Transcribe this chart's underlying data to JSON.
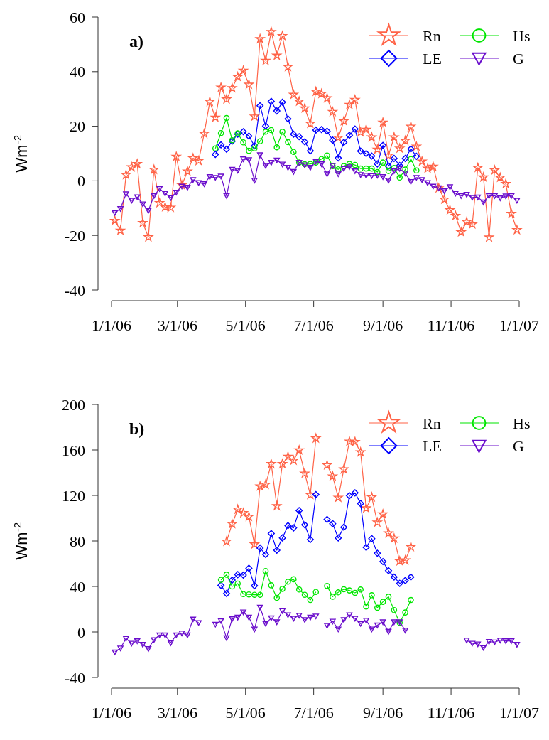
{
  "chart_data": [
    {
      "type": "line",
      "title": "a)",
      "ylabel": "Wm$^{-2}$",
      "legend": "top right",
      "ylim": [
        -40,
        60
      ],
      "yticks": [
        -40,
        -20,
        0,
        20,
        40,
        60
      ],
      "xlim": [
        "2006-01-01",
        "2007-01-01"
      ],
      "xticks": [
        {
          "value": "2006-01-01",
          "label": "1/1/06"
        },
        {
          "value": "2006-03-01",
          "label": "3/1/06"
        },
        {
          "value": "2006-05-01",
          "label": "5/1/06"
        },
        {
          "value": "2006-07-01",
          "label": "7/1/06"
        },
        {
          "value": "2006-09-01",
          "label": "9/1/06"
        },
        {
          "value": "2006-11-01",
          "label": "11/1/06"
        },
        {
          "value": "2007-01-01",
          "label": "1/1/07"
        }
      ],
      "x": [
        "2006-01-04",
        "2006-01-09",
        "2006-01-14",
        "2006-01-19",
        "2006-01-24",
        "2006-01-29",
        "2006-02-03",
        "2006-02-08",
        "2006-02-13",
        "2006-02-18",
        "2006-02-23",
        "2006-02-28",
        "2006-03-05",
        "2006-03-10",
        "2006-03-15",
        "2006-03-20",
        "2006-03-25",
        "2006-03-30",
        "2006-04-04",
        "2006-04-09",
        "2006-04-14",
        "2006-04-19",
        "2006-04-24",
        "2006-04-29",
        "2006-05-04",
        "2006-05-09",
        "2006-05-14",
        "2006-05-19",
        "2006-05-24",
        "2006-05-29",
        "2006-06-03",
        "2006-06-08",
        "2006-06-13",
        "2006-06-18",
        "2006-06-23",
        "2006-06-28",
        "2006-07-03",
        "2006-07-08",
        "2006-07-13",
        "2006-07-18",
        "2006-07-23",
        "2006-07-28",
        "2006-08-02",
        "2006-08-07",
        "2006-08-12",
        "2006-08-17",
        "2006-08-22",
        "2006-08-27",
        "2006-09-01",
        "2006-09-06",
        "2006-09-11",
        "2006-09-16",
        "2006-09-21",
        "2006-09-26",
        "2006-10-01",
        "2006-10-06",
        "2006-10-11",
        "2006-10-16",
        "2006-10-21",
        "2006-10-26",
        "2006-10-31",
        "2006-11-05",
        "2006-11-10",
        "2006-11-15",
        "2006-11-20",
        "2006-11-25",
        "2006-11-30",
        "2006-12-05",
        "2006-12-10",
        "2006-12-15",
        "2006-12-20",
        "2006-12-25",
        "2006-12-30"
      ],
      "series": [
        {
          "name": "Rn",
          "color": "#ff6347",
          "marker": "star",
          "values": [
            -14.6,
            -18.2,
            2.2,
            5,
            6.2,
            -15.4,
            -20.6,
            4.1,
            -8.1,
            -9.6,
            -9.8,
            8.9,
            -1.6,
            3.5,
            8.3,
            7.3,
            17.3,
            29,
            23.2,
            34.2,
            29.9,
            34,
            38.1,
            40.4,
            35.3,
            23.6,
            52,
            44,
            54.6,
            45.9,
            53.1,
            41.8,
            31.6,
            29.1,
            26.6,
            21,
            32.7,
            31.9,
            30.3,
            25.3,
            15.8,
            21.9,
            27.9,
            29.7,
            17.8,
            18.8,
            16,
            11.5,
            21.4,
            9.3,
            16,
            11.9,
            14.7,
            19.9,
            12.6,
            7.1,
            4.5,
            5.2,
            -2.7,
            -6.8,
            -10.7,
            -12.8,
            -18.8,
            -15,
            -15.9,
            4.8,
            1.3,
            -20.7,
            3.9,
            1.2,
            -1.1,
            -12,
            -18
          ]
        },
        {
          "name": "LE",
          "color": "#0000ff",
          "marker": "diamond",
          "values": [
            null,
            null,
            null,
            null,
            null,
            null,
            null,
            null,
            null,
            null,
            null,
            null,
            null,
            null,
            null,
            null,
            null,
            null,
            9.7,
            13.2,
            11.6,
            14.5,
            17.1,
            18,
            16.4,
            12.8,
            27.5,
            20.1,
            29.1,
            25.6,
            28.8,
            22.7,
            17.1,
            16.2,
            14.3,
            11,
            18.6,
            18.8,
            18.2,
            14.9,
            8.4,
            14.1,
            16.7,
            19,
            10.9,
            10,
            9.1,
            6.2,
            13,
            5.4,
            8.2,
            5.6,
            8.2,
            11.7,
            9,
            null,
            null,
            null,
            null,
            null,
            null,
            null,
            null,
            null,
            null,
            null,
            null,
            null,
            null,
            null,
            null,
            null,
            null
          ]
        },
        {
          "name": "Hs",
          "color": "#00e600",
          "marker": "circle",
          "values": [
            null,
            null,
            null,
            null,
            null,
            null,
            null,
            null,
            null,
            null,
            null,
            null,
            null,
            null,
            null,
            null,
            null,
            null,
            11.9,
            17.5,
            23,
            14.9,
            17.4,
            14.1,
            11,
            11.9,
            14.5,
            18,
            18.6,
            12.3,
            18,
            14.2,
            10.6,
            6.7,
            6.1,
            6.2,
            6.7,
            8,
            9.3,
            5.4,
            4.2,
            5.4,
            6.2,
            5.8,
            4.5,
            4.5,
            4.5,
            3.2,
            6.7,
            3.6,
            4.7,
            1.2,
            4.1,
            8,
            3.8,
            null,
            null,
            null,
            null,
            null,
            null,
            null,
            null,
            null,
            null,
            null,
            null,
            null,
            null,
            null,
            null,
            null,
            null
          ]
        },
        {
          "name": "G",
          "color": "#6a0dcc",
          "marker": "triangle",
          "values": [
            -11.7,
            -10.2,
            -4.8,
            -7.2,
            -5.9,
            -8.5,
            -10.9,
            -5.5,
            -2.9,
            -4.6,
            -6.2,
            -4.2,
            -2,
            -2.4,
            0.4,
            -0.7,
            -1.1,
            1.5,
            1.2,
            1.7,
            -5.5,
            4.2,
            3.8,
            8,
            7.7,
            0.2,
            9.5,
            5.6,
            6.7,
            7.6,
            6.1,
            4.9,
            3.4,
            6.7,
            5.8,
            4.9,
            7.1,
            6.2,
            2.5,
            5.6,
            2.5,
            4.5,
            5.1,
            3.6,
            2.2,
            2,
            1.9,
            2,
            1.5,
            0.2,
            3.6,
            4.5,
            2.8,
            -0.3,
            1.2,
            0.4,
            -0.7,
            -2,
            -2.6,
            -3.7,
            -2.2,
            -4.6,
            -5.5,
            -5,
            -6.1,
            -6,
            -7.8,
            -5.5,
            -5.5,
            -6.3,
            -5.6,
            -5.5,
            -7.2
          ]
        }
      ]
    },
    {
      "type": "line",
      "title": "b)",
      "ylabel": "Wm$^{-2}$",
      "legend": "top right",
      "ylim": [
        -40,
        200
      ],
      "yticks": [
        -40,
        0,
        40,
        80,
        120,
        160,
        200
      ],
      "xlim": [
        "2006-01-01",
        "2007-01-01"
      ],
      "xticks": [
        {
          "value": "2006-01-01",
          "label": "1/1/06"
        },
        {
          "value": "2006-03-01",
          "label": "3/1/06"
        },
        {
          "value": "2006-05-01",
          "label": "5/1/06"
        },
        {
          "value": "2006-07-01",
          "label": "7/1/06"
        },
        {
          "value": "2006-09-01",
          "label": "9/1/06"
        },
        {
          "value": "2006-11-01",
          "label": "11/1/06"
        },
        {
          "value": "2007-01-01",
          "label": "1/1/07"
        }
      ],
      "x": [
        "2006-01-04",
        "2006-01-09",
        "2006-01-14",
        "2006-01-19",
        "2006-01-24",
        "2006-01-29",
        "2006-02-03",
        "2006-02-08",
        "2006-02-13",
        "2006-02-18",
        "2006-02-23",
        "2006-02-28",
        "2006-03-05",
        "2006-03-10",
        "2006-03-15",
        "2006-03-20",
        "2006-03-25",
        "2006-03-30",
        "2006-04-04",
        "2006-04-09",
        "2006-04-14",
        "2006-04-19",
        "2006-04-24",
        "2006-04-29",
        "2006-05-04",
        "2006-05-09",
        "2006-05-14",
        "2006-05-19",
        "2006-05-24",
        "2006-05-29",
        "2006-06-03",
        "2006-06-08",
        "2006-06-13",
        "2006-06-18",
        "2006-06-23",
        "2006-06-28",
        "2006-07-03",
        "2006-07-08",
        "2006-07-13",
        "2006-07-18",
        "2006-07-23",
        "2006-07-28",
        "2006-08-02",
        "2006-08-07",
        "2006-08-12",
        "2006-08-17",
        "2006-08-22",
        "2006-08-27",
        "2006-09-01",
        "2006-09-06",
        "2006-09-11",
        "2006-09-16",
        "2006-09-21",
        "2006-09-26",
        "2006-10-01",
        "2006-10-06",
        "2006-10-11",
        "2006-10-16",
        "2006-10-21",
        "2006-10-26",
        "2006-10-31",
        "2006-11-05",
        "2006-11-10",
        "2006-11-15",
        "2006-11-20",
        "2006-11-25",
        "2006-11-30",
        "2006-12-05",
        "2006-12-10",
        "2006-12-15",
        "2006-12-20",
        "2006-12-25",
        "2006-12-30"
      ],
      "series": [
        {
          "name": "Rn",
          "color": "#ff6347",
          "marker": "star",
          "values": [
            null,
            null,
            null,
            null,
            null,
            null,
            null,
            null,
            null,
            null,
            null,
            null,
            null,
            null,
            null,
            null,
            null,
            null,
            null,
            null,
            79.6,
            95,
            107.7,
            104.6,
            101.4,
            77.1,
            128.1,
            129.6,
            147.7,
            110.8,
            147.7,
            154.2,
            150.8,
            159.8,
            139.4,
            120.6,
            170.2,
            null,
            146.7,
            136.9,
            118.1,
            143,
            167.5,
            167.1,
            158.1,
            108.8,
            118.5,
            96.3,
            103.5,
            86.9,
            82.3,
            62.3,
            63,
            74.8,
            null,
            null,
            null,
            null,
            null,
            null,
            null,
            null,
            null,
            null,
            null,
            null,
            null,
            null,
            null,
            null,
            null,
            null,
            null
          ]
        },
        {
          "name": "LE",
          "color": "#0000ff",
          "marker": "diamond",
          "values": [
            null,
            null,
            null,
            null,
            null,
            null,
            null,
            null,
            null,
            null,
            null,
            null,
            null,
            null,
            null,
            null,
            null,
            null,
            null,
            41,
            33.8,
            45.6,
            50.4,
            50,
            56,
            40.6,
            73.8,
            68.1,
            86.5,
            71.9,
            82.7,
            93.5,
            91.5,
            106.7,
            94.2,
            81.3,
            120.8,
            null,
            98.9,
            95.2,
            82.7,
            92.1,
            119.8,
            122.3,
            112.9,
            74.4,
            82.1,
            69.2,
            61.9,
            53.9,
            48.3,
            42.7,
            45.2,
            48.3,
            null,
            null,
            null,
            null,
            null,
            null,
            null,
            null,
            null,
            null,
            null,
            null,
            null,
            null,
            null,
            null,
            null,
            null,
            null
          ]
        },
        {
          "name": "Hs",
          "color": "#00e600",
          "marker": "circle",
          "values": [
            null,
            null,
            null,
            null,
            null,
            null,
            null,
            null,
            null,
            null,
            null,
            null,
            null,
            null,
            null,
            null,
            null,
            null,
            null,
            45.8,
            50.4,
            40,
            42.5,
            33.3,
            33,
            32.7,
            32.7,
            53.6,
            41,
            30,
            37.9,
            44.2,
            46.3,
            37.3,
            32.7,
            28.1,
            35.2,
            null,
            40.4,
            31,
            34.8,
            37.5,
            36.5,
            34.4,
            37.3,
            22.3,
            32.3,
            21.3,
            26.5,
            31,
            19.2,
            8.1,
            17.1,
            28.1,
            null,
            null,
            null,
            null,
            null,
            null,
            null,
            null,
            null,
            null,
            null,
            null,
            null,
            null,
            null,
            null,
            null,
            null,
            null
          ]
        },
        {
          "name": "G",
          "color": "#6a0dcc",
          "marker": "triangle",
          "values": [
            -17.7,
            -14.2,
            -5.8,
            -10,
            -7.9,
            -11,
            -14.8,
            -6.9,
            -2.7,
            -2.7,
            -9.6,
            -2.7,
            -1,
            -2.7,
            11.2,
            8.1,
            null,
            null,
            6.7,
            9.8,
            -5.2,
            11.5,
            12.9,
            17.5,
            12.9,
            2.5,
            21.7,
            7.3,
            12.3,
            8.8,
            18.6,
            15,
            11.9,
            14.6,
            10.8,
            12.9,
            13.9,
            null,
            5.6,
            9.4,
            2.5,
            10.8,
            15,
            11.9,
            7.3,
            10.2,
            2.5,
            6,
            8.8,
            0.4,
            8.8,
            8.8,
            1.5,
            null,
            null,
            null,
            null,
            null,
            null,
            null,
            null,
            null,
            null,
            -7.3,
            -10,
            -10.6,
            -13.8,
            -8.5,
            -8.9,
            -7.3,
            -7.9,
            -7.9,
            -11
          ]
        }
      ]
    }
  ]
}
